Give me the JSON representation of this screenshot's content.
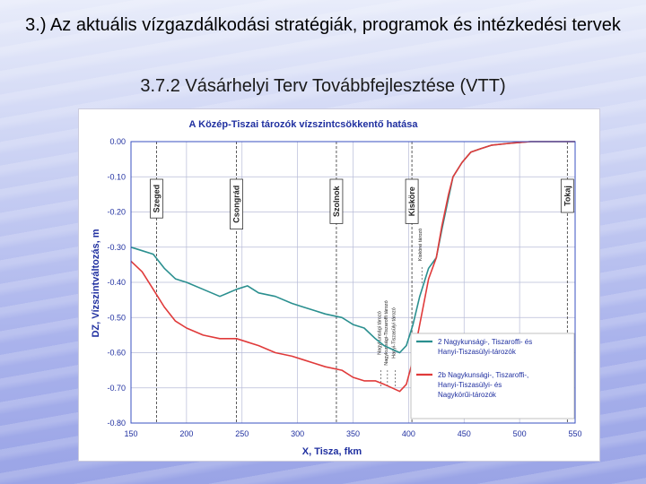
{
  "slide": {
    "title": "3.) Az aktuális vízgazdálkodási  stratégiák, programok és intézkedési tervek",
    "subtitle": "3.7.2  Vásárhelyi Terv Továbbfejlesztése (VTT)"
  },
  "colors": {
    "teal": "#2a8f8f",
    "red": "#e03a3a",
    "axis": "#3a50c0",
    "text": "#2030a0"
  },
  "chart_data": {
    "type": "line",
    "title": "A Közép-Tiszai tározók vízszintcsökkentő hatása",
    "xlabel": "X, Tisza, fkm",
    "ylabel": "DZ, Vízszintváltozás, m",
    "xlim": [
      150,
      550
    ],
    "ylim": [
      -0.8,
      0.0
    ],
    "x_ticks": [
      "150",
      "200",
      "250",
      "300",
      "350",
      "400",
      "450",
      "500",
      "550"
    ],
    "y_ticks": [
      "0.00",
      "-0.10",
      "-0.20",
      "-0.30",
      "-0.40",
      "-0.50",
      "-0.60",
      "-0.70",
      "-0.80"
    ],
    "grid": true,
    "legend_position": "bottom-right",
    "locations": [
      {
        "label": "Szeged",
        "x": 173
      },
      {
        "label": "Csongrád",
        "x": 245
      },
      {
        "label": "Szolnok",
        "x": 335
      },
      {
        "label": "Kisköre",
        "x": 403
      },
      {
        "label": "Tokaj",
        "x": 543
      }
    ],
    "annotations": [
      {
        "label": "Kiskörei tározó",
        "x": 412
      },
      {
        "label": "Nagykunsági tározó",
        "x": 375
      },
      {
        "label": "Nagykunsági-Tiszaroffi tározó",
        "x": 381
      },
      {
        "label": "Hanyi-Tiszasülyi tározó",
        "x": 388
      }
    ],
    "series": [
      {
        "name": "2 Nagykunsági-, Tiszaroffi- és Hanyi-Tiszasülyi-tározók",
        "color": "#2a8f8f",
        "x": [
          150,
          160,
          170,
          180,
          190,
          200,
          215,
          230,
          245,
          255,
          265,
          280,
          295,
          305,
          315,
          325,
          340,
          350,
          360,
          370,
          378,
          385,
          392,
          398,
          404,
          410,
          418,
          425,
          430,
          436,
          440,
          448,
          456,
          465,
          475,
          490,
          510,
          530,
          545,
          550
        ],
        "y": [
          -0.3,
          -0.31,
          -0.32,
          -0.36,
          -0.39,
          -0.4,
          -0.42,
          -0.44,
          -0.42,
          -0.41,
          -0.43,
          -0.44,
          -0.46,
          -0.47,
          -0.48,
          -0.49,
          -0.5,
          -0.52,
          -0.53,
          -0.56,
          -0.58,
          -0.59,
          -0.6,
          -0.58,
          -0.52,
          -0.44,
          -0.36,
          -0.33,
          -0.25,
          -0.16,
          -0.1,
          -0.06,
          -0.03,
          -0.02,
          -0.01,
          -0.005,
          0.0,
          0.0,
          0.0,
          0.0
        ]
      },
      {
        "name": "2b Nagykunsági-, Tiszaroffi-, Hanyi-Tiszasülyi- és Nagykörűi-tározók",
        "color": "#e03a3a",
        "x": [
          150,
          160,
          170,
          180,
          190,
          200,
          215,
          230,
          245,
          255,
          265,
          280,
          295,
          305,
          315,
          325,
          340,
          350,
          360,
          370,
          378,
          385,
          392,
          398,
          404,
          410,
          418,
          425,
          430,
          436,
          440,
          448,
          456,
          465,
          475,
          490,
          510,
          530,
          545,
          550
        ],
        "y": [
          -0.34,
          -0.37,
          -0.42,
          -0.47,
          -0.51,
          -0.53,
          -0.55,
          -0.56,
          -0.56,
          -0.57,
          -0.58,
          -0.6,
          -0.61,
          -0.62,
          -0.63,
          -0.64,
          -0.65,
          -0.67,
          -0.68,
          -0.68,
          -0.69,
          -0.7,
          -0.71,
          -0.69,
          -0.62,
          -0.52,
          -0.39,
          -0.33,
          -0.24,
          -0.15,
          -0.1,
          -0.06,
          -0.03,
          -0.02,
          -0.01,
          -0.005,
          0.0,
          0.0,
          0.0,
          0.0
        ]
      }
    ]
  }
}
